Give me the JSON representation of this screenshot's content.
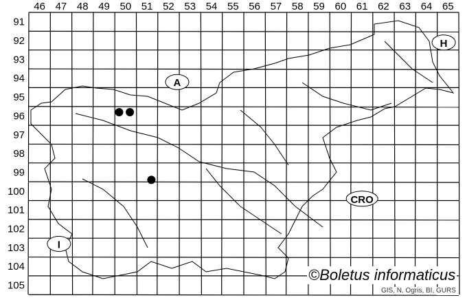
{
  "map": {
    "columns": [
      "46",
      "47",
      "48",
      "49",
      "50",
      "51",
      "52",
      "53",
      "54",
      "55",
      "56",
      "57",
      "58",
      "59",
      "60",
      "61",
      "62",
      "63",
      "64",
      "65"
    ],
    "rows": [
      "91",
      "92",
      "93",
      "94",
      "95",
      "96",
      "97",
      "98",
      "99",
      "100",
      "101",
      "102",
      "103",
      "104",
      "105"
    ],
    "country_labels": [
      {
        "text": "A",
        "col": 52.4,
        "row": 94.2
      },
      {
        "text": "H",
        "col": 64.8,
        "row": 92.1
      },
      {
        "text": "CRO",
        "col": 61.0,
        "row": 100.4
      },
      {
        "text": "I",
        "col": 46.9,
        "row": 102.8
      }
    ],
    "records": [
      {
        "col": 49.7,
        "row": 95.8
      },
      {
        "col": 50.2,
        "row": 95.8
      },
      {
        "col": 51.2,
        "row": 99.4
      }
    ],
    "colors": {
      "grid": "#000000",
      "dot": "#000000",
      "outline": "#000000"
    }
  },
  "credit": "©Boletus informaticus",
  "source": "GIS, N. Ogris, BI, GURS"
}
